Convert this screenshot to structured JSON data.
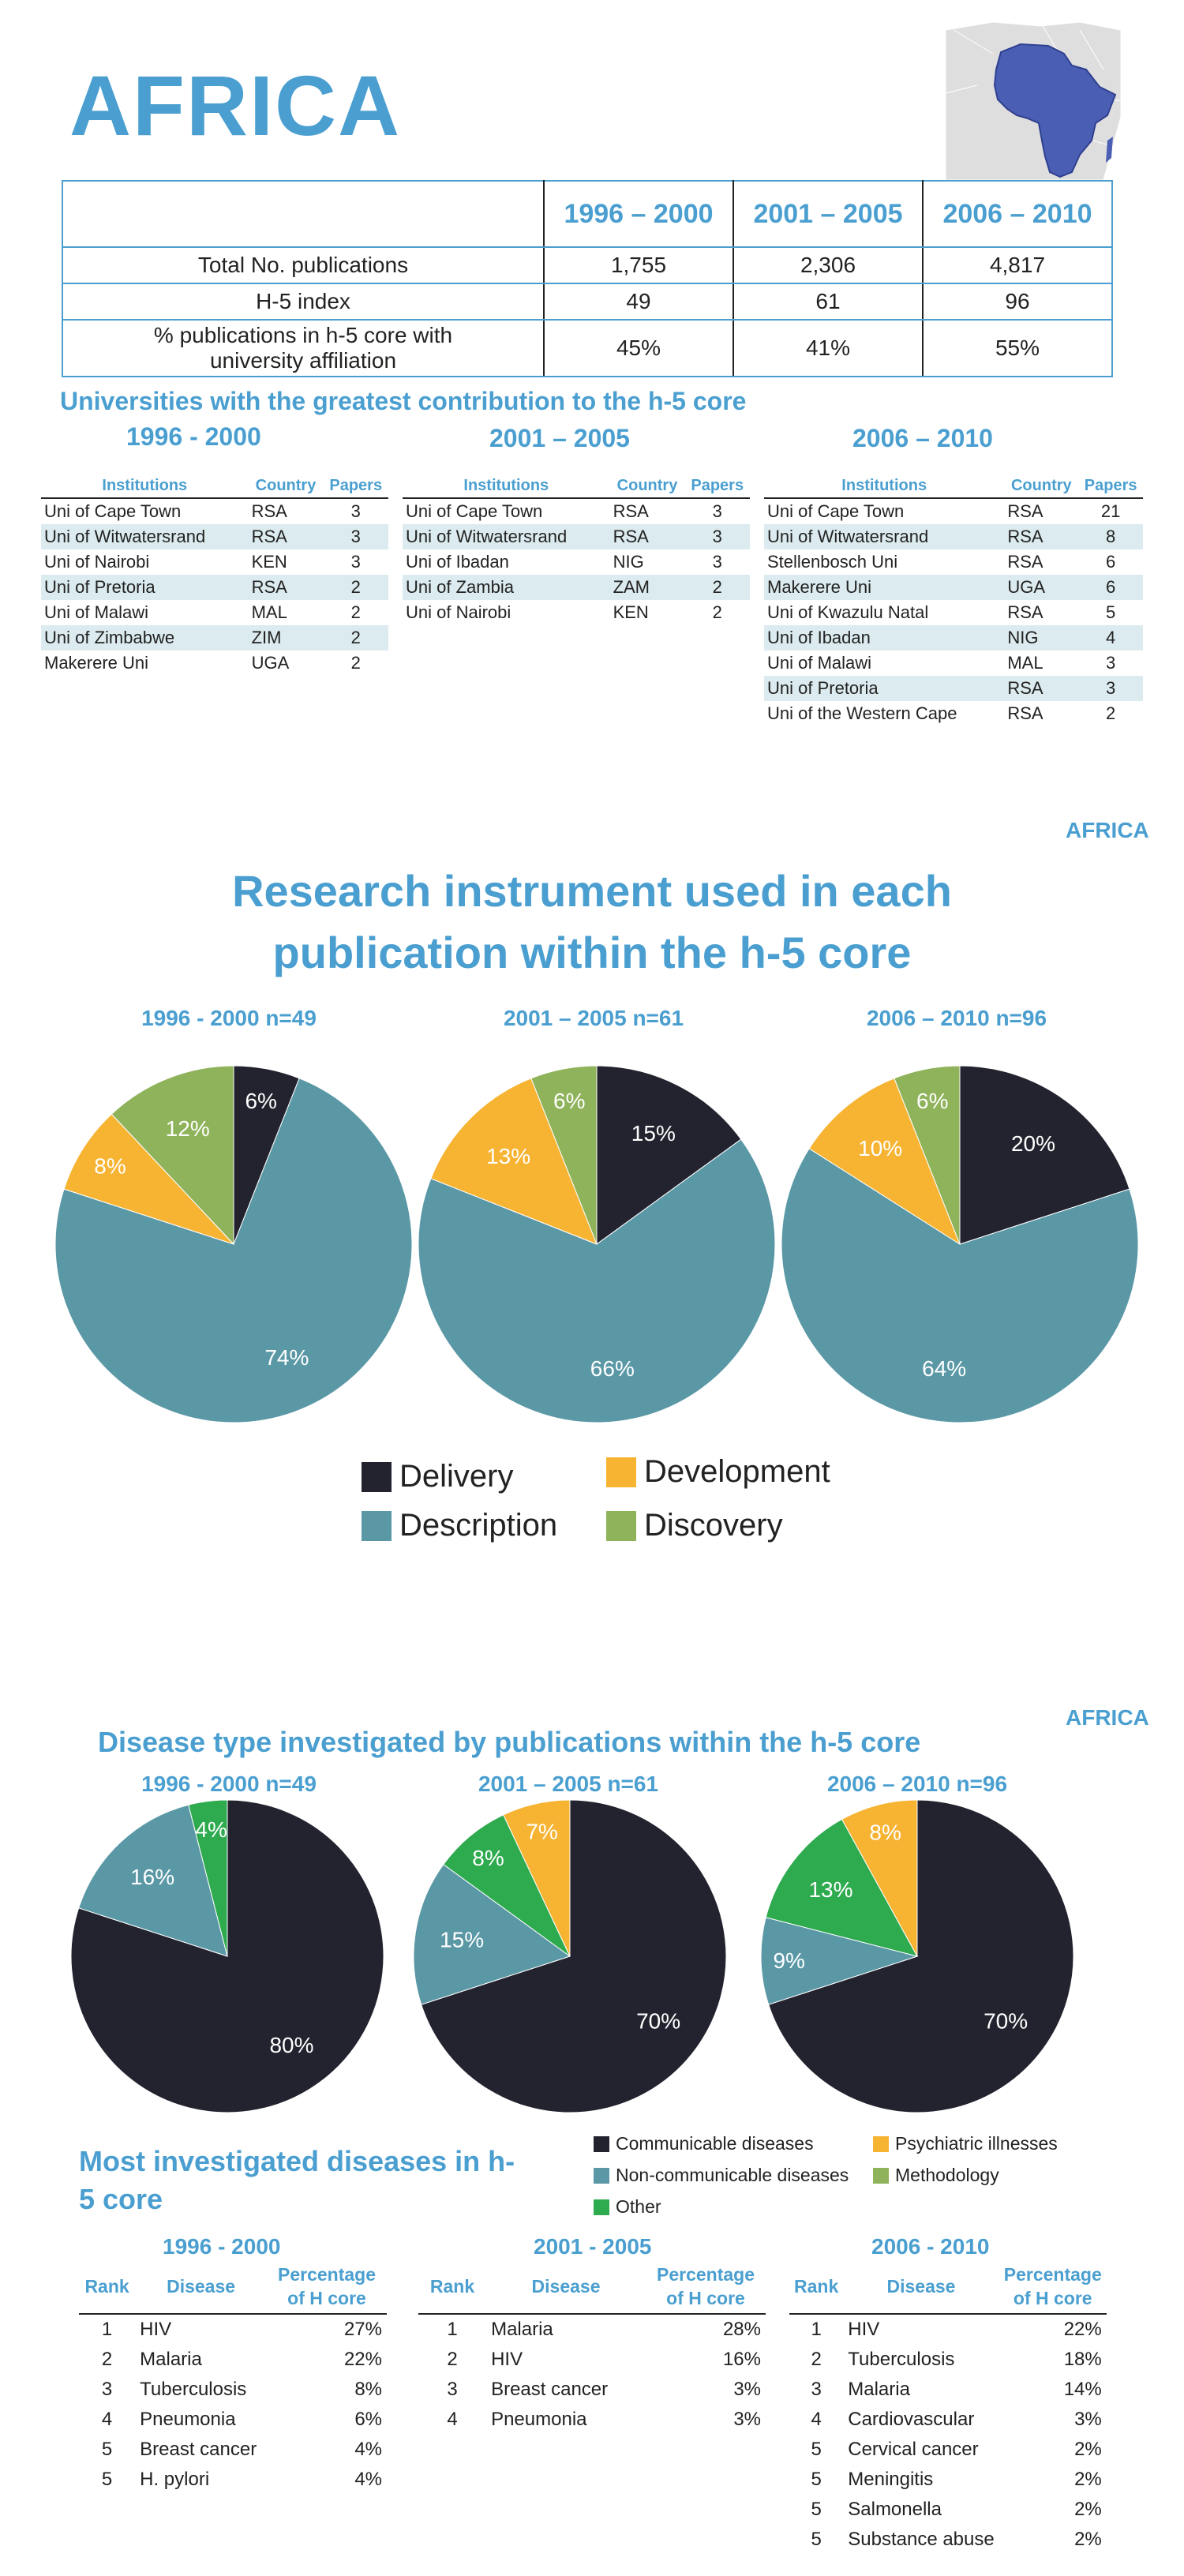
{
  "header": {
    "title": "AFRICA"
  },
  "summary": {
    "periods": [
      "1996 – 2000",
      "2001 – 2005",
      "2006 – 2010"
    ],
    "rows": [
      {
        "label": "Total No. publications",
        "values": [
          "1,755",
          "2,306",
          "4,817"
        ]
      },
      {
        "label": "H-5 index",
        "values": [
          "49",
          "61",
          "96"
        ]
      },
      {
        "label": "% publications in h-5 core with university affiliation",
        "values": [
          "45%",
          "41%",
          "55%"
        ]
      }
    ]
  },
  "universities": {
    "heading": "Universities with the greatest contribution to the h-5 core",
    "col_headers": [
      "Institutions",
      "Country",
      "Papers"
    ],
    "periods": [
      {
        "label": "1996 - 2000",
        "rows": [
          [
            "Uni of Cape Town",
            "RSA",
            "3"
          ],
          [
            "Uni of Witwatersrand",
            "RSA",
            "3"
          ],
          [
            "Uni of Nairobi",
            "KEN",
            "3"
          ],
          [
            "Uni of Pretoria",
            "RSA",
            "2"
          ],
          [
            "Uni of Malawi",
            "MAL",
            "2"
          ],
          [
            "Uni of Zimbabwe",
            "ZIM",
            "2"
          ],
          [
            "Makerere Uni",
            "UGA",
            "2"
          ]
        ]
      },
      {
        "label": "2001 – 2005",
        "rows": [
          [
            "Uni of Cape Town",
            "RSA",
            "3"
          ],
          [
            "Uni of Witwatersrand",
            "RSA",
            "3"
          ],
          [
            "Uni of Ibadan",
            "NIG",
            "3"
          ],
          [
            "Uni of Zambia",
            "ZAM",
            "2"
          ],
          [
            "Uni of Nairobi",
            "KEN",
            "2"
          ]
        ]
      },
      {
        "label": "2006 – 2010",
        "rows": [
          [
            "Uni of Cape Town",
            "RSA",
            "21"
          ],
          [
            "Uni of Witwatersrand",
            "RSA",
            "8"
          ],
          [
            "Stellenbosch Uni",
            "RSA",
            "6"
          ],
          [
            "Makerere Uni",
            "UGA",
            "6"
          ],
          [
            "Uni of Kwazulu Natal",
            "RSA",
            "5"
          ],
          [
            "Uni of Ibadan",
            "NIG",
            "4"
          ],
          [
            "Uni of Malawi",
            "MAL",
            "3"
          ],
          [
            "Uni of Pretoria",
            "RSA",
            "3"
          ],
          [
            "Uni of the Western Cape",
            "RSA",
            "2"
          ]
        ]
      }
    ]
  },
  "instrument_section": {
    "region_label": "AFRICA",
    "title_line1": "Research instrument used in each",
    "title_line2": "publication within the h-5 core"
  },
  "disease_section": {
    "region_label": "AFRICA",
    "title": "Disease type investigated by publications within the h-5 core"
  },
  "colors": {
    "accent": "#4a9fd0",
    "delivery": "#23232f",
    "description": "#5b98a6",
    "development": "#f7b332",
    "discovery": "#8fb35a",
    "communicable": "#23232f",
    "non_communicable": "#5b98a6",
    "other": "#2eaa4f",
    "psychiatric": "#f7b332",
    "methodology": "#8fb35a"
  },
  "chart_data": [
    {
      "type": "pie",
      "title": "1996 - 2000 n=49",
      "labels": [
        "Delivery",
        "Description",
        "Development",
        "Discovery"
      ],
      "values": [
        6,
        74,
        8,
        12
      ]
    },
    {
      "type": "pie",
      "title": "2001 – 2005 n=61",
      "labels": [
        "Delivery",
        "Description",
        "Development",
        "Discovery"
      ],
      "values": [
        15,
        66,
        13,
        6
      ]
    },
    {
      "type": "pie",
      "title": "2006 – 2010 n=96",
      "labels": [
        "Delivery",
        "Description",
        "Development",
        "Discovery"
      ],
      "values": [
        20,
        64,
        10,
        6
      ]
    },
    {
      "type": "pie",
      "title": "1996 - 2000 n=49",
      "labels": [
        "Communicable diseases",
        "Non-communicable diseases",
        "Other"
      ],
      "values": [
        80,
        16,
        4
      ]
    },
    {
      "type": "pie",
      "title": "2001 – 2005 n=61",
      "labels": [
        "Communicable diseases",
        "Non-communicable diseases",
        "Other",
        "Psychiatric illnesses"
      ],
      "values": [
        70,
        15,
        8,
        7
      ]
    },
    {
      "type": "pie",
      "title": "2006 – 2010 n=96",
      "labels": [
        "Communicable diseases",
        "Non-communicable diseases",
        "Other",
        "Psychiatric illnesses"
      ],
      "values": [
        70,
        9,
        13,
        8
      ]
    }
  ],
  "instrument_legend": [
    "Delivery",
    "Development",
    "Description",
    "Discovery"
  ],
  "disease_legend": [
    "Communicable diseases",
    "Psychiatric illnesses",
    "Non-communicable diseases",
    "Methodology",
    "Other"
  ],
  "diseases": {
    "heading_line1": "Most investigated diseases in h-",
    "heading_line2": "5 core",
    "col_headers": [
      "Rank",
      "Disease",
      "Percentage of H core"
    ],
    "periods": [
      {
        "label": "1996 - 2000",
        "rows": [
          [
            "1",
            "HIV",
            "27%"
          ],
          [
            "2",
            "Malaria",
            "22%"
          ],
          [
            "3",
            "Tuberculosis",
            "8%"
          ],
          [
            "4",
            "Pneumonia",
            "6%"
          ],
          [
            "5",
            "Breast cancer",
            "4%"
          ],
          [
            "5",
            "H. pylori",
            "4%"
          ]
        ]
      },
      {
        "label": "2001 - 2005",
        "rows": [
          [
            "1",
            "Malaria",
            "28%"
          ],
          [
            "2",
            "HIV",
            "16%"
          ],
          [
            "3",
            "Breast cancer",
            "3%"
          ],
          [
            "4",
            "Pneumonia",
            "3%"
          ]
        ]
      },
      {
        "label": "2006 - 2010",
        "rows": [
          [
            "1",
            "HIV",
            "22%"
          ],
          [
            "2",
            "Tuberculosis",
            "18%"
          ],
          [
            "3",
            "Malaria",
            "14%"
          ],
          [
            "4",
            "Cardiovascular",
            "3%"
          ],
          [
            "5",
            "Cervical cancer",
            "2%"
          ],
          [
            "5",
            "Meningitis",
            "2%"
          ],
          [
            "5",
            "Salmonella",
            "2%"
          ],
          [
            "5",
            "Substance abuse",
            "2%"
          ]
        ]
      }
    ]
  }
}
